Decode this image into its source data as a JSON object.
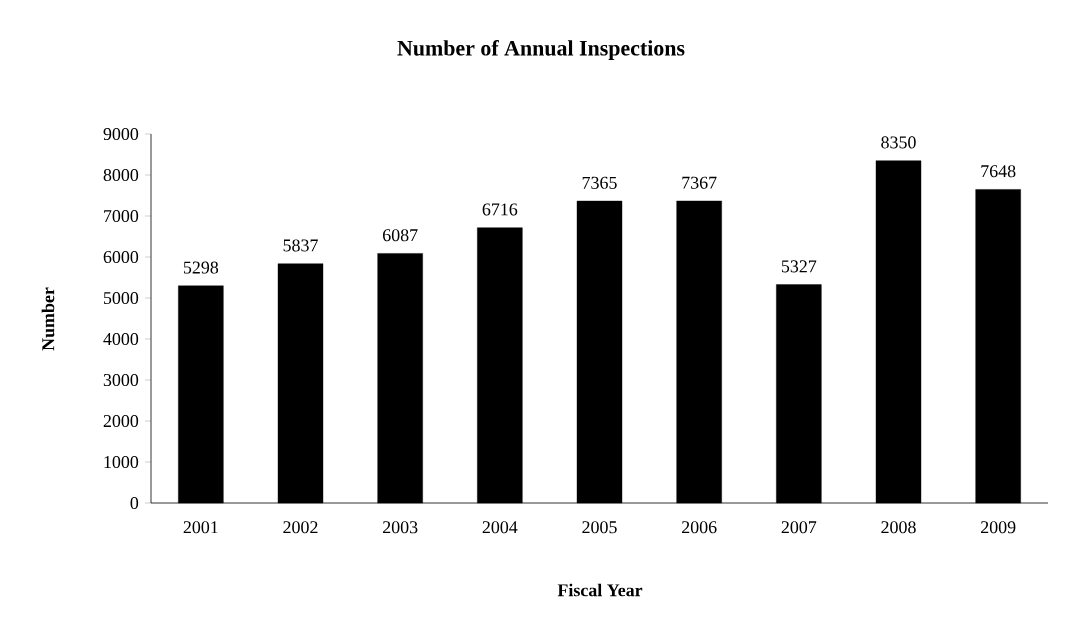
{
  "chart_data": {
    "type": "bar",
    "title": "Number of Annual Inspections",
    "xlabel": "Fiscal Year",
    "ylabel": "Number",
    "categories": [
      "2001",
      "2002",
      "2003",
      "2004",
      "2005",
      "2006",
      "2007",
      "2008",
      "2009"
    ],
    "values": [
      5298,
      5837,
      6087,
      6716,
      7365,
      7367,
      5327,
      8350,
      7648
    ],
    "color": "#000000",
    "ylim": [
      0,
      9000
    ],
    "yticks": [
      0,
      1000,
      2000,
      3000,
      4000,
      5000,
      6000,
      7000,
      8000,
      9000
    ],
    "grid": false,
    "data_labels": true
  }
}
